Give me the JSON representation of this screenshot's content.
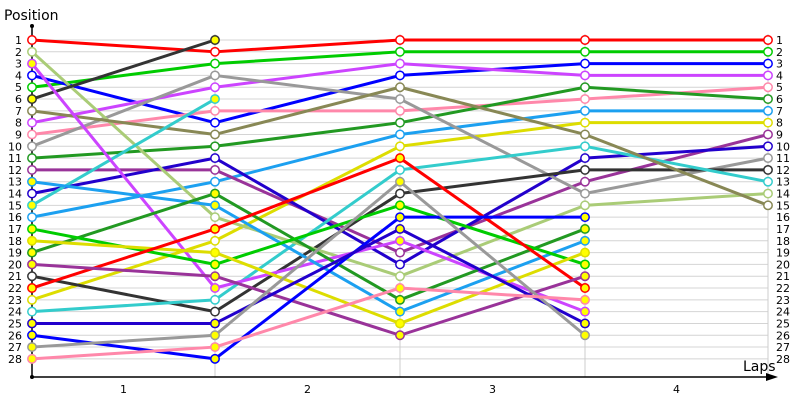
{
  "chart_data": {
    "type": "line",
    "title": "",
    "ylabel": "Position",
    "xlabel": "Laps",
    "x_ticks": [
      "1",
      "2",
      "3",
      "4"
    ],
    "y_ticks": [
      1,
      2,
      3,
      4,
      5,
      6,
      7,
      8,
      9,
      10,
      11,
      12,
      13,
      14,
      15,
      16,
      17,
      18,
      19,
      20,
      21,
      22,
      23,
      24,
      25,
      26,
      27,
      28
    ],
    "y_inverted": true,
    "grid": true,
    "laps": [
      0,
      1,
      2,
      3,
      4
    ],
    "series": [
      {
        "color": "#ff0000",
        "positions": [
          1,
          2,
          1,
          1,
          1
        ],
        "end_marker": "hollow"
      },
      {
        "color": "#00cc00",
        "positions": [
          5,
          3,
          2,
          2,
          2
        ],
        "end_marker": "hollow"
      },
      {
        "color": "#0000ff",
        "positions": [
          4,
          8,
          4,
          3,
          3
        ],
        "end_marker": "hollow"
      },
      {
        "color": "#cc44ff",
        "positions": [
          8,
          5,
          3,
          4,
          4
        ],
        "end_marker": "hollow"
      },
      {
        "color": "#ff88aa",
        "positions": [
          9,
          7,
          7,
          6,
          5
        ],
        "end_marker": "hollow"
      },
      {
        "color": "#229922",
        "positions": [
          11,
          10,
          8,
          5,
          6
        ],
        "end_marker": "hollow"
      },
      {
        "color": "#1ca0f0",
        "positions": [
          16,
          13,
          9,
          7,
          7
        ],
        "end_marker": "hollow"
      },
      {
        "color": "#dddd00",
        "positions": [
          23,
          18,
          10,
          8,
          8
        ],
        "end_marker": "hollow"
      },
      {
        "color": "#993399",
        "positions": [
          12,
          12,
          19,
          13,
          9
        ],
        "end_marker": "hollow"
      },
      {
        "color": "#2200cc",
        "positions": [
          14,
          11,
          20,
          11,
          10
        ],
        "end_marker": "hollow"
      },
      {
        "color": "#999999",
        "positions": [
          10,
          4,
          6,
          14,
          11
        ],
        "end_marker": "hollow"
      },
      {
        "color": "#333333",
        "positions": [
          21,
          24,
          14,
          12,
          12
        ],
        "end_marker": "hollow"
      },
      {
        "color": "#33cccc",
        "positions": [
          24,
          23,
          12,
          10,
          13
        ],
        "end_marker": "hollow"
      },
      {
        "color": "#aacc77",
        "positions": [
          2,
          16,
          21,
          15,
          14
        ],
        "end_marker": "hollow"
      },
      {
        "color": "#888855",
        "positions": [
          7,
          9,
          5,
          9,
          15
        ],
        "end_marker": "hollow"
      },
      {
        "color": "#333333",
        "positions": [
          6,
          1
        ],
        "end_marker": "filled"
      },
      {
        "color": "#33cccc",
        "positions": [
          15,
          6
        ],
        "end_marker": "filled"
      },
      {
        "color": "#cc44ff",
        "positions": [
          3,
          22,
          18,
          24
        ],
        "end_marker": "filled"
      },
      {
        "color": "#1ca0f0",
        "positions": [
          13,
          15,
          24,
          18
        ],
        "end_marker": "filled"
      },
      {
        "color": "#229922",
        "positions": [
          19,
          14,
          23,
          17
        ],
        "end_marker": "filled"
      },
      {
        "color": "#00cc00",
        "positions": [
          17,
          20,
          15,
          20
        ],
        "end_marker": "filled"
      },
      {
        "color": "#dddd00",
        "positions": [
          18,
          19,
          25,
          19
        ],
        "end_marker": "filled"
      },
      {
        "color": "#ff0000",
        "positions": [
          22,
          17,
          11,
          22
        ],
        "end_marker": "filled"
      },
      {
        "color": "#993399",
        "positions": [
          20,
          21,
          26,
          21
        ],
        "end_marker": "filled"
      },
      {
        "color": "#0000ff",
        "positions": [
          26,
          28,
          16,
          16
        ],
        "end_marker": "filled"
      },
      {
        "color": "#2200cc",
        "positions": [
          25,
          25,
          17,
          25
        ],
        "end_marker": "filled"
      },
      {
        "color": "#999999",
        "positions": [
          27,
          26,
          13,
          26
        ],
        "end_marker": "filled"
      },
      {
        "color": "#ff88aa",
        "positions": [
          28,
          27,
          22,
          23
        ],
        "end_marker": "filled"
      }
    ]
  }
}
